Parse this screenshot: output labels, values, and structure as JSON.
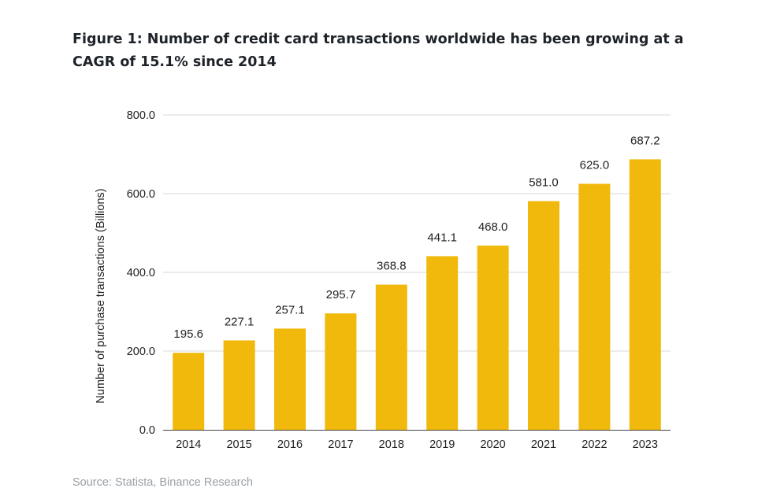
{
  "figure": {
    "title": "Figure 1: Number of credit card transactions worldwide has been growing at a CAGR of 15.1% since 2014",
    "source": "Source: Statista, Binance Research"
  },
  "colors": {
    "bar": "#f0b90b",
    "grid": "#d9d9d9",
    "axis": "#444444"
  },
  "chart_data": {
    "type": "bar",
    "title": "Figure 1: Number of credit card transactions worldwide has been growing at a CAGR of 15.1% since 2014",
    "xlabel": "",
    "ylabel": "Number of purchase transactions (Billions)",
    "ylim": [
      0,
      800
    ],
    "yticks": [
      "0.0",
      "200.0",
      "400.0",
      "600.0",
      "800.0"
    ],
    "ytick_values": [
      0,
      200,
      400,
      600,
      800
    ],
    "grid": true,
    "legend": "none",
    "categories": [
      "2014",
      "2015",
      "2016",
      "2017",
      "2018",
      "2019",
      "2020",
      "2021",
      "2022",
      "2023"
    ],
    "values": [
      195.6,
      227.1,
      257.1,
      295.7,
      368.8,
      441.1,
      468.0,
      581.0,
      625.0,
      687.2
    ],
    "value_labels": [
      "195.6",
      "227.1",
      "257.1",
      "295.7",
      "368.8",
      "441.1",
      "468.0",
      "581.0",
      "625.0",
      "687.2"
    ]
  }
}
